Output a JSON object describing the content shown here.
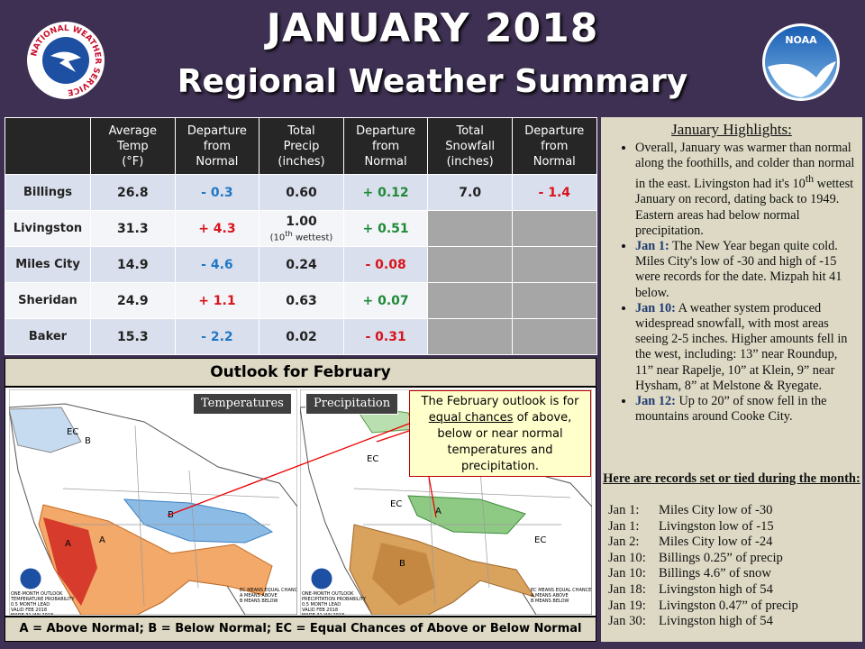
{
  "header": {
    "title": "JANUARY 2018",
    "subtitle": "Regional Weather Summary",
    "left_logo": "NATIONAL WEATHER SERVICE",
    "right_logo": "NOAA"
  },
  "table": {
    "headers": [
      "Average\nTemp\n(°F)",
      "Departure\nfrom\nNormal",
      "Total\nPrecip\n(inches)",
      "Departure\nfrom\nNormal",
      "Total\nSnowfall\n(inches)",
      "Departure\nfrom\nNormal"
    ],
    "rows": [
      {
        "city": "Billings",
        "avg_temp": "26.8",
        "temp_departure": "- 0.3",
        "precip": "0.60",
        "precip_departure": "+ 0.12",
        "snowfall": "7.0",
        "snow_departure": "- 1.4"
      },
      {
        "city": "Livingston",
        "avg_temp": "31.3",
        "temp_departure": "+ 4.3",
        "precip": "1.00",
        "precip_note": {
          "pre": "(10",
          "sup": "th",
          "post": " wettest)"
        },
        "precip_departure": "+ 0.51"
      },
      {
        "city": "Miles City",
        "avg_temp": "14.9",
        "temp_departure": "- 4.6",
        "precip": "0.24",
        "precip_departure": "- 0.08"
      },
      {
        "city": "Sheridan",
        "avg_temp": "24.9",
        "temp_departure": "+ 1.1",
        "precip": "0.63",
        "precip_departure": "+ 0.07"
      },
      {
        "city": "Baker",
        "avg_temp": "15.3",
        "temp_departure": "- 2.2",
        "precip": "0.02",
        "precip_departure": "- 0.31"
      }
    ]
  },
  "outlook": {
    "title": "Outlook for February",
    "temp_label": "Temperatures",
    "precip_label": "Precipitation",
    "callout": {
      "pre": "The February outlook is for ",
      "underlined": "equal chances",
      "post": " of above, below or near normal temperatures and precipitation."
    },
    "temp_map_labels": [
      "EC",
      "B",
      "B",
      "A",
      "A"
    ],
    "precip_map_labels": [
      "EC",
      "EC",
      "A",
      "B",
      "EC"
    ],
    "temp_map_footer": "ONE-MONTH OUTLOOK\nTEMPERATURE PROBABILITY\n0.5 MONTH LEAD\nVALID FEB 2018\nMADE 31 JAN 2018",
    "precip_map_footer": "ONE-MONTH OUTLOOK\nPRECIPITATION PROBABILITY\n0.5 MONTH LEAD\nVALID FEB 2018\nMADE 31 JAN 2018",
    "map_key": "EC MEANS EQUAL CHANCES\nA MEANS ABOVE\nB MEANS BELOW",
    "legend": "A = Above Normal;  B = Below Normal;  EC = Equal Chances of Above or Below Normal"
  },
  "highlights": {
    "title": "January Highlights:",
    "bullets": [
      {
        "pre": "Overall, January was warmer than normal along the foothills, and colder than normal in the east. Livingston had it's 10",
        "sup": "th",
        "post": " wettest January on record, dating back to 1949. Eastern areas had below normal precipitation."
      },
      {
        "lead": "Jan 1:",
        "post": " The New Year began quite cold. Miles City's low of -30 and high of -15 were records for the date. Mizpah hit 41 below."
      },
      {
        "lead": "Jan 10:",
        "post": " A weather system produced widespread snowfall, with most areas seeing 2-5 inches. Higher amounts fell in the west, including: 13” near Roundup, 11” near Rapelje, 10” at Klein, 9” near Hysham, 8” at Melstone & Ryegate."
      },
      {
        "lead": "Jan 12:",
        "post": "  Up to 20” of snow fell in the mountains around Cooke City."
      }
    ],
    "records_title": "Here are records set or tied during the month:",
    "records": [
      {
        "date": "Jan 1:",
        "text": "Miles City low of -30"
      },
      {
        "date": "Jan 1:",
        "text": "Livingston low of -15"
      },
      {
        "date": "Jan 2:",
        "text": "Miles City low of -24"
      },
      {
        "date": "Jan 10:",
        "text": "Billings 0.25” of precip"
      },
      {
        "date": "Jan 10:",
        "text": "Billings 4.6” of snow"
      },
      {
        "date": "Jan 18:",
        "text": "Livingston high of 54"
      },
      {
        "date": "Jan 19:",
        "text": "Livingston 0.47” of precip"
      },
      {
        "date": "Jan 30:",
        "text": "Livingston high of 54"
      }
    ]
  }
}
